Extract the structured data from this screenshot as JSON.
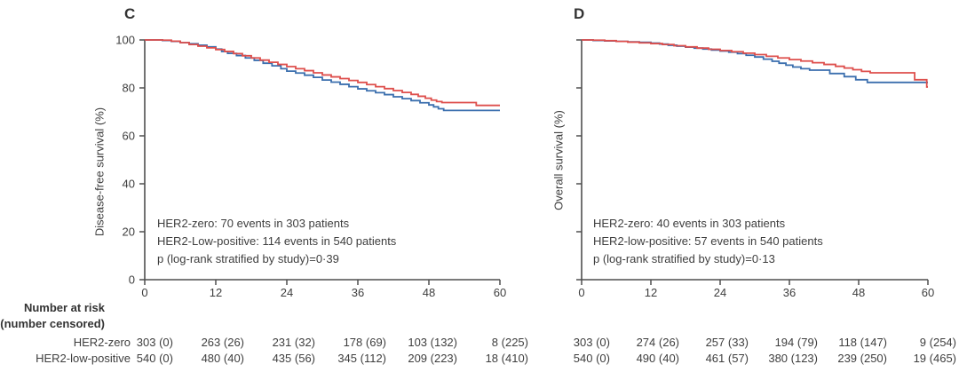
{
  "figure": {
    "background": "#ffffff",
    "text_color": "#3e3e3e",
    "axis_color": "#4f4f4f"
  },
  "risk_table": {
    "header_line1": "Number at risk",
    "header_line2": "(number censored)"
  },
  "chart_data": [
    {
      "type": "line",
      "panel_label": "C",
      "ylabel": "Disease-free survival (%)",
      "xlabel": "",
      "xlim": [
        0,
        60
      ],
      "ylim": [
        0,
        100
      ],
      "xticks": [
        0,
        12,
        24,
        36,
        48,
        60
      ],
      "yticks": [
        0,
        20,
        40,
        60,
        80,
        100
      ],
      "show_ytick_labels": true,
      "grid": false,
      "legend": "none",
      "annotation_lines": [
        "HER2-zero: 70 events in 303 patients",
        "HER2-Low-positive: 114 events in 540 patients",
        "p (log-rank stratified by study)=0·39"
      ],
      "series": [
        {
          "name": "HER2-zero",
          "color": "#3b6fae",
          "step": true,
          "points": [
            [
              0,
              100
            ],
            [
              3,
              99.8
            ],
            [
              4.5,
              99.4
            ],
            [
              6,
              98.9
            ],
            [
              7.5,
              98.4
            ],
            [
              9,
              97.8
            ],
            [
              10.5,
              97.1
            ],
            [
              12,
              96.2
            ],
            [
              13,
              95.2
            ],
            [
              14,
              94.4
            ],
            [
              15.5,
              93.5
            ],
            [
              17,
              92.5
            ],
            [
              18.5,
              91.5
            ],
            [
              20,
              90.3
            ],
            [
              21.5,
              89.2
            ],
            [
              23,
              88.0
            ],
            [
              24,
              87.0
            ],
            [
              25.5,
              86.2
            ],
            [
              27,
              85.3
            ],
            [
              28.5,
              84.4
            ],
            [
              30,
              83.3
            ],
            [
              31.5,
              82.4
            ],
            [
              33,
              81.5
            ],
            [
              34.5,
              80.5
            ],
            [
              36,
              79.6
            ],
            [
              37.5,
              78.8
            ],
            [
              39,
              78.0
            ],
            [
              40.5,
              77.2
            ],
            [
              42,
              76.3
            ],
            [
              43.5,
              75.5
            ],
            [
              45,
              74.7
            ],
            [
              46.5,
              73.8
            ],
            [
              48,
              72.9
            ],
            [
              48.8,
              72.1
            ],
            [
              49.6,
              71.3
            ],
            [
              50.5,
              70.6
            ],
            [
              60,
              70.6
            ]
          ]
        },
        {
          "name": "HER2-low-positive",
          "color": "#de4f4c",
          "step": true,
          "points": [
            [
              0,
              100
            ],
            [
              3,
              99.9
            ],
            [
              4.5,
              99.5
            ],
            [
              6,
              98.9
            ],
            [
              7.5,
              98.1
            ],
            [
              9,
              97.4
            ],
            [
              10.5,
              96.7
            ],
            [
              12,
              96.0
            ],
            [
              13.5,
              95.2
            ],
            [
              15,
              94.3
            ],
            [
              16.5,
              93.4
            ],
            [
              18,
              92.5
            ],
            [
              19.5,
              91.6
            ],
            [
              21,
              90.7
            ],
            [
              22.5,
              89.8
            ],
            [
              24,
              88.9
            ],
            [
              25.5,
              88.0
            ],
            [
              27,
              87.2
            ],
            [
              28.5,
              86.3
            ],
            [
              30,
              85.4
            ],
            [
              31.5,
              84.6
            ],
            [
              33,
              83.9
            ],
            [
              34.5,
              83.1
            ],
            [
              36,
              82.3
            ],
            [
              37.5,
              81.4
            ],
            [
              39,
              80.5
            ],
            [
              40.5,
              79.7
            ],
            [
              42,
              78.9
            ],
            [
              43.5,
              78.1
            ],
            [
              45,
              77.3
            ],
            [
              46.2,
              76.5
            ],
            [
              47.4,
              75.7
            ],
            [
              48.4,
              74.9
            ],
            [
              49.3,
              74.3
            ],
            [
              50.2,
              73.9
            ],
            [
              56,
              72.7
            ],
            [
              60,
              72.7
            ]
          ]
        }
      ],
      "at_risk_rows": [
        {
          "label": "HER2-zero",
          "values": [
            "303 (0)",
            "263 (26)",
            "231 (32)",
            "178 (69)",
            "103 (132)",
            "8 (225)"
          ]
        },
        {
          "label": "HER2-low-positive",
          "values": [
            "540 (0)",
            "480 (40)",
            "435 (56)",
            "345 (112)",
            "209 (223)",
            "18 (410)"
          ]
        }
      ]
    },
    {
      "type": "line",
      "panel_label": "D",
      "ylabel": "Overall survival (%)",
      "xlabel": "",
      "xlim": [
        0,
        60
      ],
      "ylim": [
        0,
        100
      ],
      "xticks": [
        0,
        12,
        24,
        36,
        48,
        60
      ],
      "yticks": [
        0,
        20,
        40,
        60,
        80,
        100
      ],
      "show_ytick_labels": false,
      "grid": false,
      "legend": "none",
      "annotation_lines": [
        "HER2-zero: 40 events in 303 patients",
        "HER2-low-positive: 57 events in 540 patients",
        "p (log-rank stratified by study)=0·13"
      ],
      "series": [
        {
          "name": "HER2-zero",
          "color": "#3b6fae",
          "step": true,
          "points": [
            [
              0,
              100
            ],
            [
              2,
              99.8
            ],
            [
              4,
              99.6
            ],
            [
              6,
              99.4
            ],
            [
              8,
              99.2
            ],
            [
              10,
              99.0
            ],
            [
              12,
              98.7
            ],
            [
              13.5,
              98.3
            ],
            [
              15,
              97.8
            ],
            [
              16.5,
              97.4
            ],
            [
              18,
              97.0
            ],
            [
              19.5,
              96.6
            ],
            [
              21,
              96.2
            ],
            [
              22.5,
              95.8
            ],
            [
              24,
              95.4
            ],
            [
              25.5,
              94.9
            ],
            [
              27,
              94.3
            ],
            [
              28.5,
              93.6
            ],
            [
              30,
              92.9
            ],
            [
              31.5,
              92.0
            ],
            [
              33,
              91.1
            ],
            [
              34.2,
              90.3
            ],
            [
              35.4,
              89.5
            ],
            [
              36.6,
              88.7
            ],
            [
              38,
              88.0
            ],
            [
              39.5,
              87.4
            ],
            [
              43,
              86.0
            ],
            [
              45.5,
              84.7
            ],
            [
              47.5,
              83.4
            ],
            [
              49.5,
              82.3
            ],
            [
              60,
              82.3
            ]
          ]
        },
        {
          "name": "HER2-low-positive",
          "color": "#de4f4c",
          "step": true,
          "points": [
            [
              0,
              100
            ],
            [
              2,
              99.9
            ],
            [
              4,
              99.7
            ],
            [
              6,
              99.4
            ],
            [
              8,
              99.1
            ],
            [
              10,
              98.8
            ],
            [
              12,
              98.5
            ],
            [
              14,
              98.1
            ],
            [
              16,
              97.6
            ],
            [
              18,
              97.1
            ],
            [
              20,
              96.6
            ],
            [
              22,
              96.1
            ],
            [
              24,
              95.6
            ],
            [
              26,
              95.1
            ],
            [
              28,
              94.5
            ],
            [
              30,
              93.9
            ],
            [
              32,
              93.2
            ],
            [
              34,
              92.5
            ],
            [
              36,
              91.8
            ],
            [
              38,
              91.2
            ],
            [
              40,
              90.5
            ],
            [
              42,
              89.8
            ],
            [
              44,
              89.0
            ],
            [
              45.5,
              88.3
            ],
            [
              47,
              87.6
            ],
            [
              48.5,
              86.9
            ],
            [
              50,
              86.3
            ],
            [
              57.7,
              83.4
            ],
            [
              59.7,
              83.4
            ],
            [
              59.8,
              80.4
            ],
            [
              60,
              80.4
            ]
          ]
        }
      ],
      "at_risk_rows": [
        {
          "label": "HER2-zero",
          "values": [
            "303 (0)",
            "274 (26)",
            "257 (33)",
            "194 (79)",
            "118 (147)",
            "9 (254)"
          ]
        },
        {
          "label": "HER2-low-positive",
          "values": [
            "540 (0)",
            "490 (40)",
            "461 (57)",
            "380 (123)",
            "239 (250)",
            "19 (465)"
          ]
        }
      ]
    }
  ]
}
